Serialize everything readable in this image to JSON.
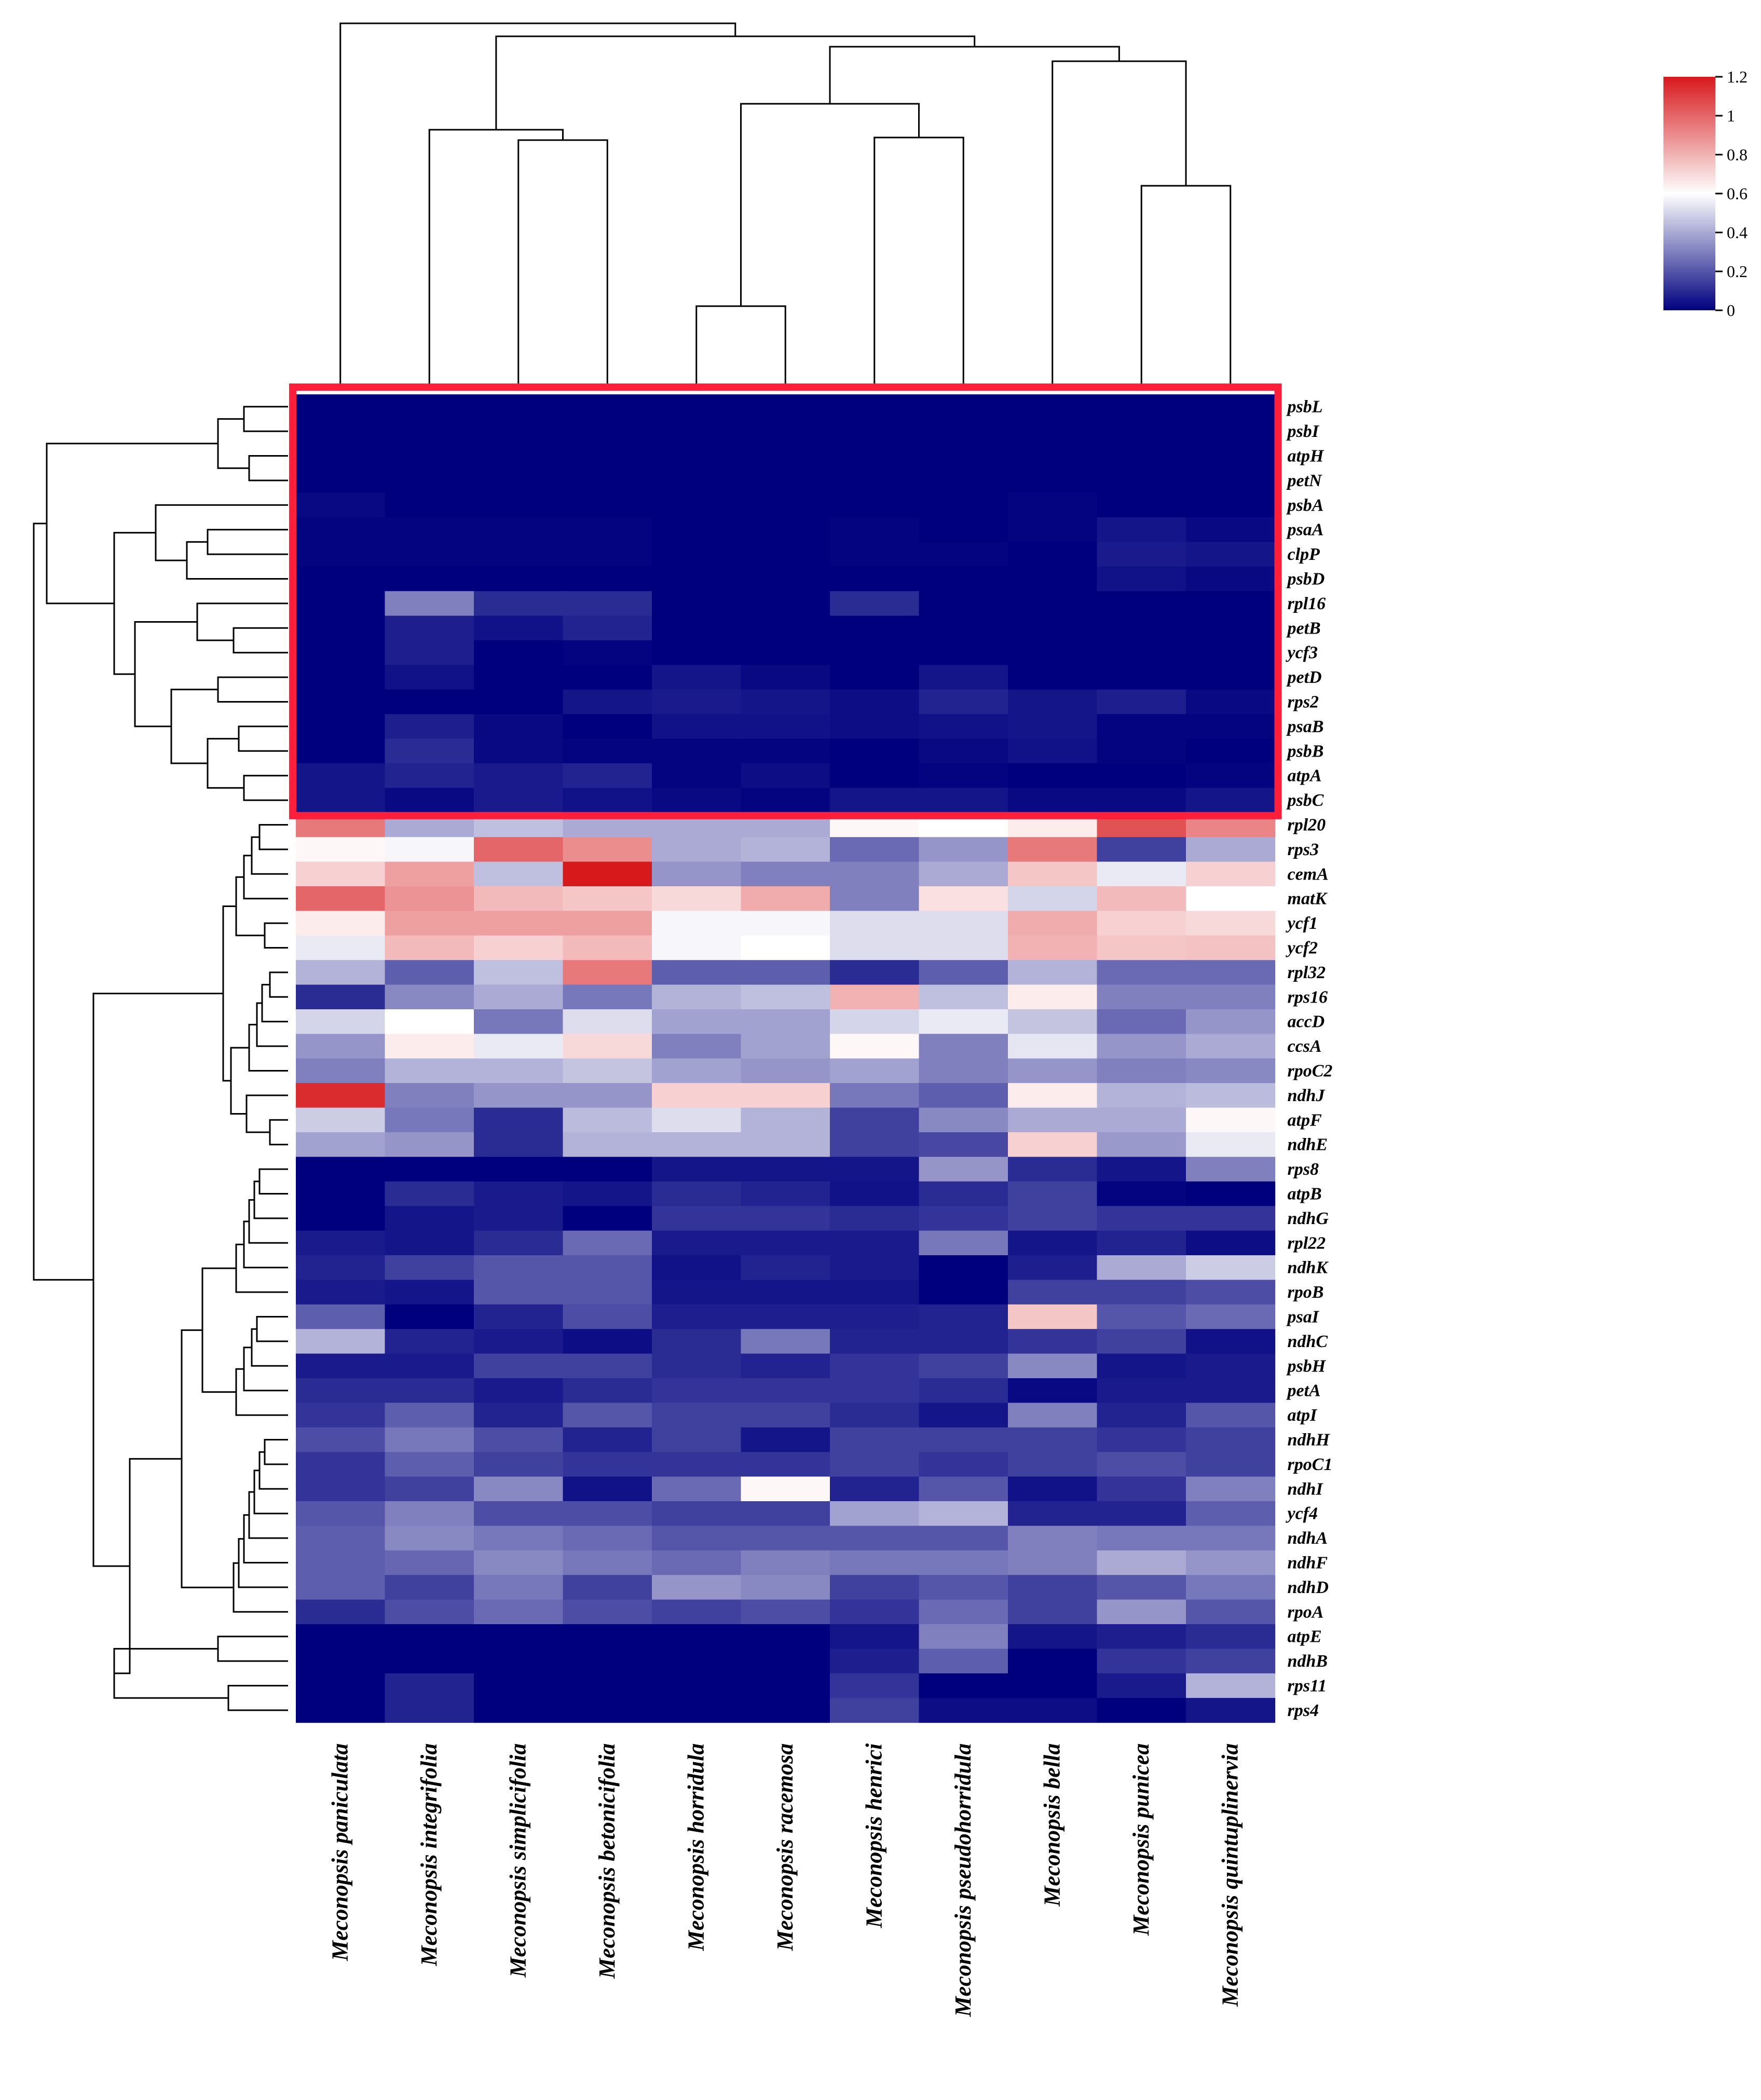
{
  "chart_data": {
    "type": "heatmap",
    "title": "",
    "xlabel": "",
    "ylabel": "",
    "columns": [
      "Meconopsis paniculata",
      "Meconopsis integrifolia",
      "Meconopsis simplicifolia",
      "Meconopsis betonicifolia",
      "Meconopsis horridula",
      "Meconopsis racemosa",
      "Meconopsis henrici",
      "Meconopsis pseudohorridula",
      "Meconopsis bella",
      "Meconopsis punicea",
      "Meconopsis quintuplinervia"
    ],
    "rows": [
      "psbL",
      "psbI",
      "atpH",
      "petN",
      "psbA",
      "psaA",
      "clpP",
      "psbD",
      "rpl16",
      "petB",
      "ycf3",
      "petD",
      "rps2",
      "psaB",
      "psbB",
      "atpA",
      "psbC",
      "rpl20",
      "rps3",
      "cemA",
      "matK",
      "ycf1",
      "ycf2",
      "rpl32",
      "rps16",
      "accD",
      "ccsA",
      "rpoC2",
      "ndhJ",
      "atpF",
      "ndhE",
      "rps8",
      "atpB",
      "ndhG",
      "rpl22",
      "ndhK",
      "rpoB",
      "psaI",
      "ndhC",
      "psbH",
      "petA",
      "atpI",
      "ndhH",
      "rpoC1",
      "ndhI",
      "ycf4",
      "ndhA",
      "ndhF",
      "ndhD",
      "rpoA",
      "atpE",
      "ndhB",
      "rps11",
      "rps4"
    ],
    "values": [
      [
        0.0,
        0.0,
        0.0,
        0.0,
        0.0,
        0.0,
        0.0,
        0.0,
        0.0,
        0.0,
        0.0
      ],
      [
        0.0,
        0.0,
        0.0,
        0.0,
        0.0,
        0.0,
        0.0,
        0.0,
        0.0,
        0.0,
        0.0
      ],
      [
        0.0,
        0.0,
        0.0,
        0.0,
        0.0,
        0.0,
        0.0,
        0.0,
        0.0,
        0.0,
        0.0
      ],
      [
        0.0,
        0.0,
        0.0,
        0.0,
        0.0,
        0.0,
        0.0,
        0.0,
        0.0,
        0.0,
        0.0
      ],
      [
        0.02,
        0.0,
        0.0,
        0.0,
        0.0,
        0.0,
        0.0,
        0.0,
        0.01,
        0.0,
        0.0
      ],
      [
        0.01,
        0.01,
        0.01,
        0.01,
        0.0,
        0.0,
        0.01,
        0.0,
        0.01,
        0.05,
        0.02
      ],
      [
        0.01,
        0.01,
        0.01,
        0.01,
        0.0,
        0.0,
        0.01,
        0.01,
        0.0,
        0.06,
        0.05
      ],
      [
        0.0,
        0.0,
        0.0,
        0.0,
        0.0,
        0.0,
        0.0,
        0.0,
        0.0,
        0.04,
        0.02
      ],
      [
        0.0,
        0.3,
        0.1,
        0.1,
        0.0,
        0.0,
        0.1,
        0.0,
        0.0,
        0.0,
        0.0
      ],
      [
        0.0,
        0.07,
        0.04,
        0.08,
        0.0,
        0.0,
        0.0,
        0.0,
        0.0,
        0.0,
        0.0
      ],
      [
        0.0,
        0.07,
        0.0,
        0.01,
        0.0,
        0.0,
        0.0,
        0.0,
        0.0,
        0.0,
        0.0
      ],
      [
        0.0,
        0.04,
        0.0,
        0.0,
        0.05,
        0.02,
        0.0,
        0.05,
        0.0,
        0.0,
        0.0
      ],
      [
        0.0,
        0.0,
        0.0,
        0.05,
        0.06,
        0.05,
        0.03,
        0.08,
        0.05,
        0.07,
        0.02
      ],
      [
        0.0,
        0.07,
        0.02,
        0.0,
        0.04,
        0.04,
        0.03,
        0.04,
        0.05,
        0.01,
        0.01
      ],
      [
        0.0,
        0.1,
        0.02,
        0.01,
        0.01,
        0.01,
        0.0,
        0.02,
        0.04,
        0.01,
        0.0
      ],
      [
        0.05,
        0.08,
        0.06,
        0.08,
        0.01,
        0.03,
        0.0,
        0.01,
        0.0,
        0.0,
        0.01
      ],
      [
        0.05,
        0.02,
        0.06,
        0.04,
        0.02,
        0.01,
        0.05,
        0.05,
        0.02,
        0.02,
        0.05
      ],
      [
        0.95,
        0.4,
        0.45,
        0.4,
        0.4,
        0.4,
        0.62,
        0.6,
        0.65,
        1.05,
        0.92
      ],
      [
        0.62,
        0.58,
        1.0,
        0.9,
        0.4,
        0.42,
        0.25,
        0.35,
        0.95,
        0.15,
        0.4
      ],
      [
        0.72,
        0.85,
        0.45,
        1.2,
        0.35,
        0.3,
        0.3,
        0.4,
        0.75,
        0.55,
        0.72
      ],
      [
        1.0,
        0.88,
        0.78,
        0.75,
        0.7,
        0.82,
        0.3,
        0.68,
        0.5,
        0.78,
        0.6
      ],
      [
        0.65,
        0.85,
        0.85,
        0.85,
        0.58,
        0.58,
        0.52,
        0.52,
        0.82,
        0.72,
        0.7
      ],
      [
        0.55,
        0.78,
        0.72,
        0.78,
        0.58,
        0.6,
        0.52,
        0.52,
        0.8,
        0.75,
        0.76
      ],
      [
        0.42,
        0.22,
        0.45,
        0.95,
        0.22,
        0.22,
        0.1,
        0.22,
        0.42,
        0.25,
        0.25
      ],
      [
        0.1,
        0.32,
        0.4,
        0.28,
        0.42,
        0.45,
        0.8,
        0.45,
        0.65,
        0.3,
        0.3
      ],
      [
        0.5,
        0.6,
        0.28,
        0.52,
        0.38,
        0.38,
        0.5,
        0.55,
        0.46,
        0.25,
        0.35
      ],
      [
        0.35,
        0.65,
        0.55,
        0.7,
        0.3,
        0.38,
        0.62,
        0.3,
        0.54,
        0.35,
        0.4
      ],
      [
        0.3,
        0.42,
        0.42,
        0.46,
        0.38,
        0.35,
        0.38,
        0.3,
        0.35,
        0.3,
        0.32
      ],
      [
        1.15,
        0.3,
        0.35,
        0.35,
        0.72,
        0.72,
        0.28,
        0.22,
        0.65,
        0.42,
        0.44
      ],
      [
        0.48,
        0.28,
        0.1,
        0.44,
        0.52,
        0.42,
        0.15,
        0.32,
        0.4,
        0.4,
        0.62
      ],
      [
        0.38,
        0.35,
        0.1,
        0.42,
        0.42,
        0.42,
        0.15,
        0.17,
        0.72,
        0.36,
        0.55
      ],
      [
        0.0,
        0.0,
        0.0,
        0.0,
        0.05,
        0.05,
        0.05,
        0.35,
        0.1,
        0.05,
        0.3
      ],
      [
        0.0,
        0.1,
        0.06,
        0.05,
        0.1,
        0.08,
        0.04,
        0.1,
        0.15,
        0.01,
        0.0
      ],
      [
        0.0,
        0.05,
        0.06,
        0.0,
        0.12,
        0.12,
        0.1,
        0.12,
        0.15,
        0.12,
        0.12
      ],
      [
        0.06,
        0.05,
        0.1,
        0.25,
        0.06,
        0.06,
        0.06,
        0.28,
        0.05,
        0.08,
        0.03
      ],
      [
        0.08,
        0.15,
        0.2,
        0.2,
        0.04,
        0.08,
        0.06,
        0.0,
        0.07,
        0.4,
        0.48
      ],
      [
        0.06,
        0.05,
        0.2,
        0.2,
        0.05,
        0.05,
        0.05,
        0.0,
        0.15,
        0.15,
        0.18
      ],
      [
        0.22,
        0.0,
        0.08,
        0.18,
        0.07,
        0.07,
        0.07,
        0.08,
        0.75,
        0.2,
        0.25
      ],
      [
        0.42,
        0.08,
        0.06,
        0.03,
        0.1,
        0.28,
        0.08,
        0.08,
        0.12,
        0.15,
        0.04
      ],
      [
        0.06,
        0.06,
        0.15,
        0.15,
        0.1,
        0.08,
        0.12,
        0.15,
        0.32,
        0.05,
        0.06
      ],
      [
        0.1,
        0.1,
        0.06,
        0.1,
        0.12,
        0.12,
        0.12,
        0.1,
        0.02,
        0.06,
        0.06
      ],
      [
        0.12,
        0.22,
        0.08,
        0.2,
        0.15,
        0.15,
        0.1,
        0.05,
        0.3,
        0.08,
        0.2
      ],
      [
        0.18,
        0.28,
        0.18,
        0.08,
        0.15,
        0.05,
        0.15,
        0.15,
        0.15,
        0.12,
        0.15
      ],
      [
        0.12,
        0.22,
        0.15,
        0.12,
        0.12,
        0.12,
        0.15,
        0.12,
        0.15,
        0.18,
        0.15
      ],
      [
        0.12,
        0.15,
        0.32,
        0.04,
        0.25,
        0.62,
        0.08,
        0.2,
        0.04,
        0.12,
        0.3
      ],
      [
        0.2,
        0.3,
        0.18,
        0.18,
        0.15,
        0.15,
        0.38,
        0.42,
        0.08,
        0.08,
        0.22
      ],
      [
        0.22,
        0.32,
        0.28,
        0.25,
        0.2,
        0.2,
        0.2,
        0.2,
        0.3,
        0.28,
        0.28
      ],
      [
        0.22,
        0.24,
        0.32,
        0.28,
        0.25,
        0.3,
        0.28,
        0.28,
        0.3,
        0.4,
        0.35
      ],
      [
        0.22,
        0.15,
        0.28,
        0.15,
        0.35,
        0.32,
        0.15,
        0.2,
        0.15,
        0.2,
        0.28
      ],
      [
        0.1,
        0.18,
        0.25,
        0.18,
        0.15,
        0.18,
        0.12,
        0.25,
        0.15,
        0.35,
        0.2
      ],
      [
        0.0,
        0.0,
        0.0,
        0.0,
        0.0,
        0.0,
        0.05,
        0.3,
        0.05,
        0.07,
        0.1
      ],
      [
        0.0,
        0.0,
        0.0,
        0.0,
        0.0,
        0.0,
        0.07,
        0.22,
        0.0,
        0.12,
        0.15
      ],
      [
        0.0,
        0.08,
        0.0,
        0.0,
        0.0,
        0.0,
        0.12,
        0.0,
        0.0,
        0.06,
        0.42
      ],
      [
        0.0,
        0.08,
        0.0,
        0.0,
        0.0,
        0.0,
        0.15,
        0.03,
        0.03,
        0.0,
        0.05
      ]
    ],
    "colorbar": {
      "min": 0,
      "max": 1.2,
      "ticks": [
        "1.2",
        "1",
        "0.8",
        "0.6",
        "0.4",
        "0.2",
        "0"
      ],
      "colors": {
        "low": "#00007f",
        "mid": "#ffffff",
        "high": "#d7191c"
      }
    },
    "highlight": {
      "rows_from": "psbL",
      "rows_to": "psbC",
      "color": "#ff1f3a"
    }
  }
}
